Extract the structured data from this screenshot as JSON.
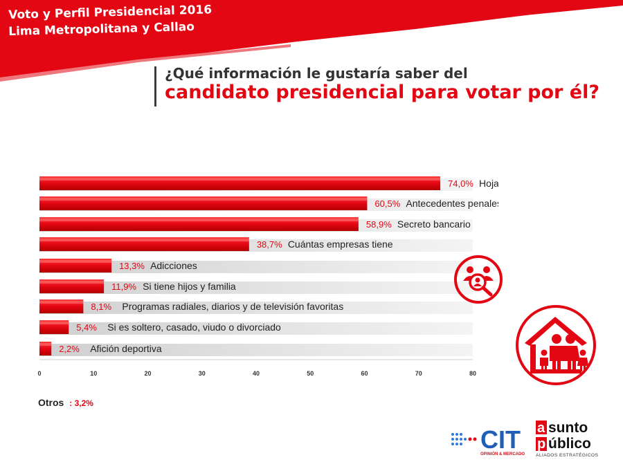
{
  "header": {
    "line1": "Voto y Perfil Presidencial 2016",
    "line2": "Lima Metropolitana y Callao"
  },
  "question": {
    "line1": "¿Qué información le gustaría saber del",
    "line2": "candidato presidencial para votar por él?"
  },
  "colors": {
    "accent": "#e30613",
    "text_dark": "#333333",
    "bar_shadow": "#dddddd"
  },
  "chart_data": {
    "type": "bar",
    "orientation": "horizontal",
    "categories": [
      "Hoja de vida",
      "Antecedentes penales y policiales",
      "Secreto bancario",
      "Cuántas empresas tiene",
      "Adicciones",
      "Si tiene hijos y familia",
      "Programas radiales, diarios y de televisión favoritas",
      "Si es soltero, casado, viudo o divorciado",
      "Afición deportiva"
    ],
    "values": [
      74.0,
      60.5,
      58.9,
      38.7,
      13.3,
      11.9,
      8.1,
      5.4,
      2.2
    ],
    "value_labels": [
      "74,0%",
      "60,5%",
      "58,9%",
      "38,7%",
      "13,3%",
      "11,9%",
      "8,1%",
      "5,4%",
      "2,2%"
    ],
    "xticks": [
      "0",
      "10",
      "20",
      "30",
      "40",
      "50",
      "60",
      "70",
      "80"
    ],
    "xlim": [
      0,
      80
    ],
    "grid": false
  },
  "others": {
    "label": "Otros",
    "value": ": 3,2%"
  },
  "logos": {
    "cit_name": "CIT",
    "cit_tagline": "OPINIÓN & MERCADO",
    "asunto_word1": "asunto",
    "asunto_word2": "público",
    "asunto_tagline": "ALIADOS ESTRATÉGICOS"
  },
  "icons": {
    "search": "people-search-icon",
    "family": "family-home-icon"
  }
}
